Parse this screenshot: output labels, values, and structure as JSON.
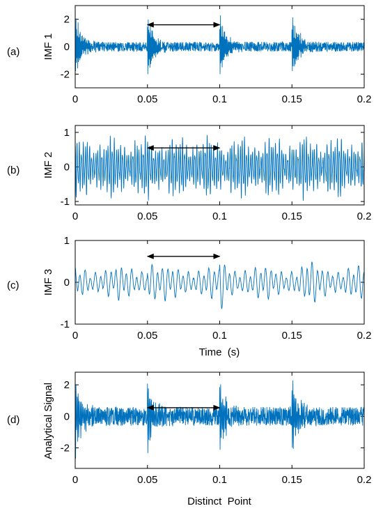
{
  "colors": {
    "signal": "#0072BD",
    "axis": "#000000",
    "arrow": "#000000"
  },
  "chart_data": [
    {
      "type": "line",
      "panel_label": "(a)",
      "ylabel": "IMF 1",
      "xlabel": "",
      "xlim": [
        0,
        0.2
      ],
      "ylim": [
        -3,
        3
      ],
      "xticks": [
        0,
        0.05,
        0.1,
        0.15,
        0.2
      ],
      "xtick_labels": [
        "0",
        "0.05",
        "0.1",
        "0.15",
        "0.2"
      ],
      "yticks": [
        -2,
        0,
        2
      ],
      "ytick_labels": [
        "-2",
        "0",
        "2"
      ],
      "signal": {
        "kind": "impulsive",
        "burst_times": [
          0,
          0.05,
          0.1,
          0.15
        ],
        "peak_amplitude": 2.8,
        "noise_amplitude": 0.35,
        "dominant_frequency_hz": 2000
      },
      "annotation": {
        "type": "double-arrow",
        "x_start": 0.05,
        "x_end": 0.1,
        "y": 1.6
      }
    },
    {
      "type": "line",
      "panel_label": "(b)",
      "ylabel": "IMF 2",
      "xlabel": "",
      "xlim": [
        0,
        0.2
      ],
      "ylim": [
        -1.1,
        1.2
      ],
      "xticks": [
        0,
        0.05,
        0.1,
        0.15,
        0.2
      ],
      "xtick_labels": [
        "0",
        "0.05",
        "0.1",
        "0.15",
        "0.2"
      ],
      "yticks": [
        -1,
        0,
        1
      ],
      "ytick_labels": [
        "-1",
        "0",
        "1"
      ],
      "signal": {
        "kind": "modulated",
        "peak_amplitude": 1.1,
        "dominant_frequency_hz": 700
      },
      "annotation": {
        "type": "double-arrow",
        "x_start": 0.05,
        "x_end": 0.1,
        "y": 0.55
      }
    },
    {
      "type": "line",
      "panel_label": "(c)",
      "ylabel": "IMF 3",
      "xlabel": "Time  (s)",
      "xlim": [
        0,
        0.2
      ],
      "ylim": [
        -1,
        1
      ],
      "xticks": [
        0,
        0.05,
        0.1,
        0.15,
        0.2
      ],
      "xtick_labels": [
        "0",
        "0.05",
        "0.1",
        "0.15",
        "0.2"
      ],
      "yticks": [
        -1,
        0,
        1
      ],
      "ytick_labels": [
        "-1",
        "0",
        "1"
      ],
      "signal": {
        "kind": "low-frequency",
        "peak_amplitude": 0.7,
        "dominant_frequency_hz": 280
      },
      "annotation": {
        "type": "double-arrow",
        "x_start": 0.05,
        "x_end": 0.1,
        "y": 0.62
      }
    },
    {
      "type": "line",
      "panel_label": "(d)",
      "ylabel": "Analytical Signal",
      "xlabel": "Distinct  Point",
      "xlim": [
        0,
        0.2
      ],
      "ylim": [
        -3.3,
        2.8
      ],
      "xticks": [
        0,
        0.05,
        0.1,
        0.15,
        0.2
      ],
      "xtick_labels": [
        "0",
        "0.05",
        "0.1",
        "0.15",
        "0.2"
      ],
      "yticks": [
        -2,
        0,
        2
      ],
      "ytick_labels": [
        "-2",
        "0",
        "2"
      ],
      "signal": {
        "kind": "impulsive",
        "burst_times": [
          0,
          0.05,
          0.1,
          0.15
        ],
        "peak_amplitude": 2.9,
        "noise_amplitude": 0.6,
        "dominant_frequency_hz": 1400
      },
      "annotation": {
        "type": "double-arrow",
        "x_start": 0.05,
        "x_end": 0.1,
        "y": 0.55
      }
    }
  ]
}
